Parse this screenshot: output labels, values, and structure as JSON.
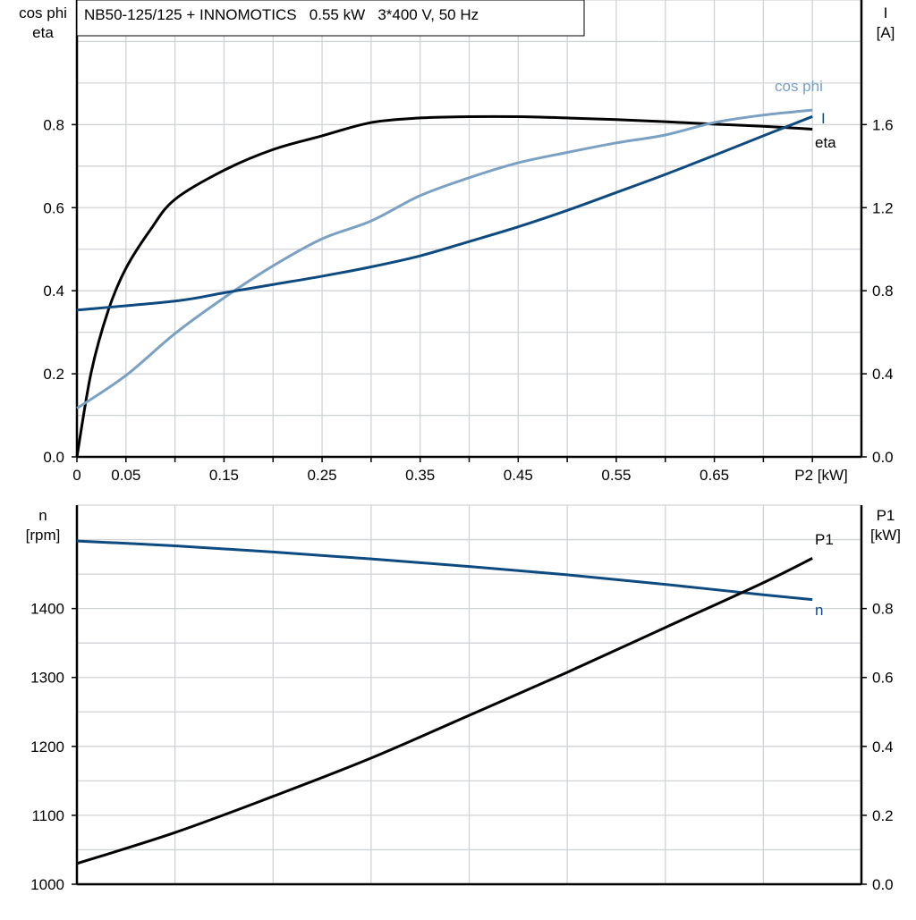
{
  "chart_data": [
    {
      "type": "line",
      "title": "NB50-125/125 + INNOMOTICS   0.55 kW   3*400 V, 50 Hz",
      "xlabel": "P2 [kW]",
      "ylabel_left": [
        "cos phi",
        "eta"
      ],
      "ylabel_right": [
        "I",
        "[A]"
      ],
      "xlim": [
        0,
        0.8
      ],
      "ylim_left": [
        0,
        1.1
      ],
      "ylim_right": [
        0,
        2.2
      ],
      "x_tick_labels": [
        "0",
        "0.05",
        "0.15",
        "0.25",
        "0.35",
        "0.45",
        "0.55",
        "0.65"
      ],
      "x_ticks": [
        0,
        0.05,
        0.15,
        0.25,
        0.35,
        0.45,
        0.55,
        0.65
      ],
      "y_left_ticks": [
        "0.0",
        "0.2",
        "0.4",
        "0.6",
        "0.8"
      ],
      "y_right_ticks": [
        "0.0",
        "0.4",
        "0.8",
        "1.2",
        "1.6"
      ],
      "grid": true,
      "series": [
        {
          "name": "eta",
          "axis": "left",
          "color": "#000000",
          "x": [
            0,
            0.0145,
            0.032,
            0.05,
            0.075,
            0.1,
            0.15,
            0.2,
            0.25,
            0.3,
            0.35,
            0.4,
            0.45,
            0.5,
            0.55,
            0.6,
            0.65,
            0.7,
            0.75
          ],
          "y": [
            0,
            0.203,
            0.353,
            0.454,
            0.547,
            0.62,
            0.69,
            0.74,
            0.773,
            0.805,
            0.816,
            0.819,
            0.819,
            0.816,
            0.812,
            0.807,
            0.801,
            0.796,
            0.789
          ]
        },
        {
          "name": "cos phi",
          "axis": "left",
          "color": "#7aa0c4",
          "x": [
            0,
            0.05,
            0.1,
            0.15,
            0.2,
            0.25,
            0.3,
            0.35,
            0.4,
            0.45,
            0.5,
            0.55,
            0.6,
            0.65,
            0.7,
            0.75
          ],
          "y": [
            0.117,
            0.196,
            0.297,
            0.383,
            0.46,
            0.525,
            0.568,
            0.629,
            0.672,
            0.708,
            0.733,
            0.756,
            0.775,
            0.805,
            0.823,
            0.835
          ]
        },
        {
          "name": "I",
          "axis": "right",
          "color": "#0d4a80",
          "x": [
            0,
            0.1,
            0.15,
            0.2,
            0.25,
            0.3,
            0.35,
            0.4,
            0.45,
            0.5,
            0.55,
            0.6,
            0.65,
            0.7,
            0.75
          ],
          "y": [
            0.707,
            0.75,
            0.79,
            0.83,
            0.87,
            0.915,
            0.968,
            1.037,
            1.108,
            1.187,
            1.273,
            1.36,
            1.452,
            1.546,
            1.639
          ]
        }
      ]
    },
    {
      "type": "line",
      "ylabel_left": [
        "n",
        "[rpm]"
      ],
      "ylabel_right": [
        "P1",
        "[kW]"
      ],
      "xlim": [
        0,
        0.8
      ],
      "ylim_left": [
        1000,
        1550
      ],
      "ylim_right": [
        0,
        1.1
      ],
      "y_left_ticks": [
        "1000",
        "1100",
        "1200",
        "1300",
        "1400"
      ],
      "y_right_ticks": [
        "0.0",
        "0.2",
        "0.4",
        "0.6",
        "0.8"
      ],
      "grid": true,
      "series": [
        {
          "name": "n",
          "axis": "left",
          "color": "#0d4a80",
          "x": [
            0,
            0.1,
            0.2,
            0.3,
            0.4,
            0.5,
            0.6,
            0.7,
            0.75
          ],
          "y": [
            1498,
            1491,
            1482,
            1472,
            1461,
            1449,
            1435,
            1420,
            1413
          ]
        },
        {
          "name": "P1",
          "axis": "right",
          "color": "#000000",
          "x": [
            0,
            0.1,
            0.2,
            0.3,
            0.4,
            0.5,
            0.6,
            0.7,
            0.75
          ],
          "y": [
            0.06,
            0.15,
            0.255,
            0.366,
            0.49,
            0.615,
            0.745,
            0.875,
            0.946
          ]
        }
      ]
    }
  ]
}
